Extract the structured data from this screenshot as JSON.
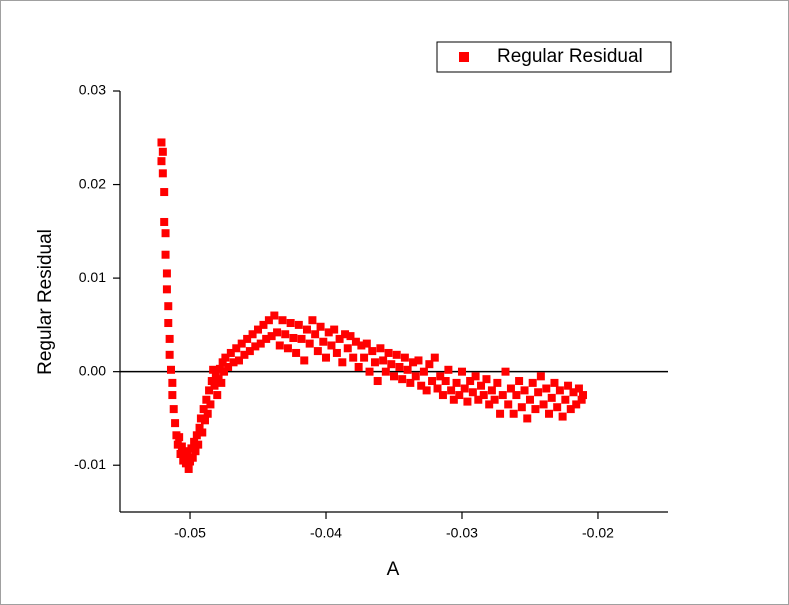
{
  "chart_data": {
    "type": "scatter",
    "xlabel": "A",
    "ylabel": "Regular Residual",
    "xlim": [
      -0.05515,
      -0.01485
    ],
    "ylim": [
      -0.015,
      0.03
    ],
    "xticks": [
      -0.05,
      -0.04,
      -0.03,
      -0.02
    ],
    "yticks": [
      -0.01,
      {
        "value": 0,
        "label": "0.00"
      },
      0.01,
      0.02,
      0.03
    ],
    "hline": 0,
    "legend": "upper right",
    "x": [
      -0.0521,
      -0.0521,
      -0.052,
      -0.052,
      -0.0519,
      -0.0519,
      -0.0518,
      -0.0518,
      -0.0517,
      -0.0517,
      -0.0516,
      -0.0516,
      -0.0515,
      -0.0515,
      -0.0514,
      -0.0513,
      -0.0513,
      -0.0512,
      -0.0511,
      -0.051,
      -0.0509,
      -0.0508,
      -0.0507,
      -0.0506,
      -0.0505,
      -0.0504,
      -0.0503,
      -0.0502,
      -0.0501,
      -0.05,
      -0.0499,
      -0.0498,
      -0.0497,
      -0.0496,
      -0.0495,
      -0.0494,
      -0.0493,
      -0.0492,
      -0.0491,
      -0.049,
      -0.0489,
      -0.0488,
      -0.0487,
      -0.0486,
      -0.0485,
      -0.0484,
      -0.0483,
      -0.0482,
      -0.0481,
      -0.048,
      -0.0479,
      -0.0478,
      -0.0477,
      -0.0476,
      -0.0475,
      -0.0474,
      -0.0472,
      -0.047,
      -0.0468,
      -0.0466,
      -0.0464,
      -0.0462,
      -0.046,
      -0.0458,
      -0.0456,
      -0.0454,
      -0.0452,
      -0.045,
      -0.0448,
      -0.0446,
      -0.0444,
      -0.0442,
      -0.044,
      -0.0438,
      -0.0436,
      -0.0434,
      -0.0432,
      -0.043,
      -0.0428,
      -0.0426,
      -0.0424,
      -0.0422,
      -0.042,
      -0.0418,
      -0.0416,
      -0.0414,
      -0.0412,
      -0.041,
      -0.0408,
      -0.0406,
      -0.0404,
      -0.0402,
      -0.04,
      -0.0398,
      -0.0396,
      -0.0394,
      -0.0392,
      -0.039,
      -0.0388,
      -0.0386,
      -0.0384,
      -0.0382,
      -0.038,
      -0.0378,
      -0.0376,
      -0.0374,
      -0.0372,
      -0.037,
      -0.0368,
      -0.0366,
      -0.0364,
      -0.0362,
      -0.036,
      -0.0358,
      -0.0356,
      -0.0354,
      -0.0352,
      -0.035,
      -0.0348,
      -0.0346,
      -0.0344,
      -0.0342,
      -0.034,
      -0.0338,
      -0.0336,
      -0.0334,
      -0.0332,
      -0.033,
      -0.0328,
      -0.0326,
      -0.0324,
      -0.0322,
      -0.032,
      -0.0318,
      -0.0316,
      -0.0314,
      -0.0312,
      -0.031,
      -0.0308,
      -0.0306,
      -0.0304,
      -0.0302,
      -0.03,
      -0.0298,
      -0.0296,
      -0.0294,
      -0.0292,
      -0.029,
      -0.0288,
      -0.0286,
      -0.0284,
      -0.0282,
      -0.028,
      -0.0278,
      -0.0276,
      -0.0274,
      -0.0272,
      -0.027,
      -0.0268,
      -0.0266,
      -0.0264,
      -0.0262,
      -0.026,
      -0.0258,
      -0.0256,
      -0.0254,
      -0.0252,
      -0.025,
      -0.0248,
      -0.0246,
      -0.0244,
      -0.0242,
      -0.024,
      -0.0238,
      -0.0236,
      -0.0234,
      -0.0232,
      -0.023,
      -0.0228,
      -0.0226,
      -0.0224,
      -0.0222,
      -0.022,
      -0.0218,
      -0.0216,
      -0.0214,
      -0.0212,
      -0.0211
    ],
    "series": [
      {
        "name": "Regular Residual",
        "color": "#ff0000",
        "values": [
          0.0245,
          0.0225,
          0.0212,
          0.0235,
          0.0192,
          0.016,
          0.0148,
          0.0125,
          0.0105,
          0.0088,
          0.007,
          0.0052,
          0.0035,
          0.0018,
          0.0002,
          -0.0012,
          -0.0025,
          -0.004,
          -0.0055,
          -0.0068,
          -0.0078,
          -0.007,
          -0.0088,
          -0.008,
          -0.0095,
          -0.0085,
          -0.0098,
          -0.009,
          -0.0104,
          -0.0096,
          -0.0082,
          -0.0092,
          -0.0075,
          -0.0085,
          -0.0068,
          -0.0078,
          -0.006,
          -0.005,
          -0.0065,
          -0.004,
          -0.0052,
          -0.003,
          -0.0045,
          -0.002,
          -0.0035,
          -0.001,
          0.0002,
          -0.0015,
          -0.0005,
          -0.0025,
          -0.0008,
          0.0003,
          -0.0012,
          0.001,
          0.0,
          0.0015,
          0.0005,
          0.002,
          0.001,
          0.0025,
          0.0012,
          0.003,
          0.0018,
          0.0035,
          0.0022,
          0.004,
          0.0027,
          0.0045,
          0.003,
          0.005,
          0.0035,
          0.0055,
          0.0038,
          0.006,
          0.0042,
          0.0028,
          0.0055,
          0.004,
          0.0025,
          0.0052,
          0.0036,
          0.002,
          0.005,
          0.0035,
          0.0012,
          0.0045,
          0.003,
          0.0055,
          0.004,
          0.0022,
          0.0048,
          0.0032,
          0.0015,
          0.0042,
          0.0028,
          0.0045,
          0.002,
          0.0035,
          0.001,
          0.004,
          0.0025,
          0.0038,
          0.0015,
          0.0032,
          0.0005,
          0.0028,
          0.0015,
          0.003,
          0.0,
          0.0022,
          0.001,
          -0.001,
          0.0025,
          0.0012,
          0.0,
          0.002,
          0.0008,
          -0.0005,
          0.0018,
          0.0005,
          -0.0008,
          0.0015,
          0.0002,
          -0.0012,
          0.001,
          -0.0005,
          0.0012,
          -0.0015,
          0.0,
          -0.002,
          0.0008,
          -0.001,
          0.0015,
          -0.0018,
          -0.0005,
          -0.0025,
          -0.001,
          0.0002,
          -0.002,
          -0.003,
          -0.0012,
          -0.0025,
          0.0,
          -0.0018,
          -0.0032,
          -0.001,
          -0.0022,
          -0.0005,
          -0.003,
          -0.0015,
          -0.0025,
          -0.0008,
          -0.0035,
          -0.002,
          -0.003,
          -0.0012,
          -0.0045,
          -0.0025,
          0.0,
          -0.0035,
          -0.0018,
          -0.0045,
          -0.0025,
          -0.001,
          -0.0038,
          -0.002,
          -0.005,
          -0.003,
          -0.0012,
          -0.004,
          -0.0022,
          -0.0005,
          -0.0035,
          -0.0018,
          -0.0045,
          -0.0028,
          -0.0012,
          -0.0038,
          -0.002,
          -0.0048,
          -0.003,
          -0.0015,
          -0.004,
          -0.0022,
          -0.0035,
          -0.0018,
          -0.003,
          -0.0025
        ]
      }
    ]
  }
}
